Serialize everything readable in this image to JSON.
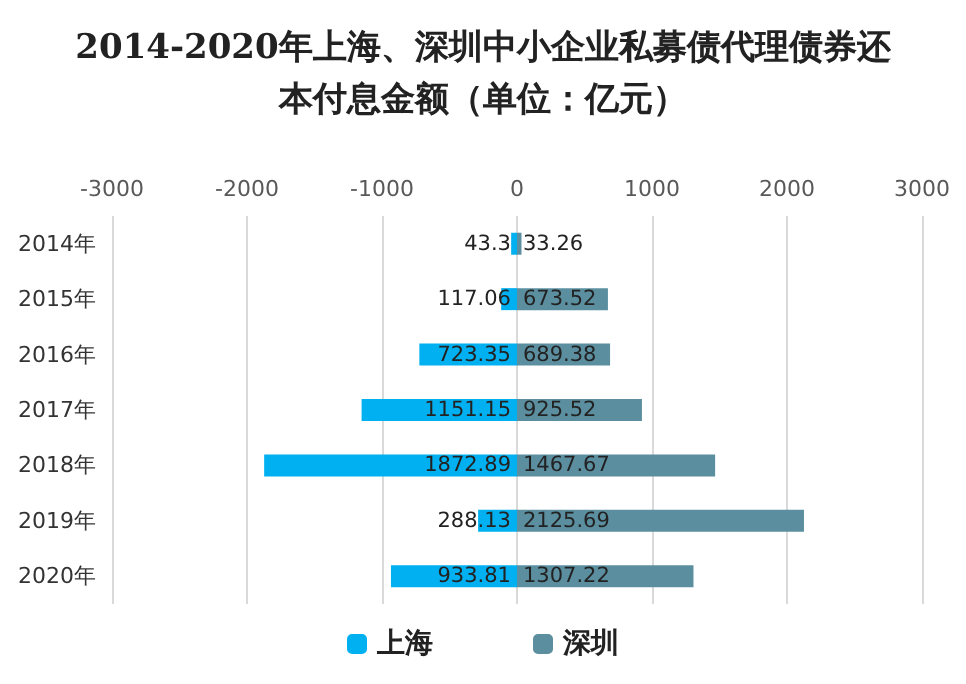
{
  "chart_data": {
    "type": "bar",
    "orientation": "horizontal",
    "title": "2014-2020年上海、深圳中小企业私募债代理债券还本付息金额（单位：亿元）",
    "categories": [
      "2014年",
      "2015年",
      "2016年",
      "2017年",
      "2018年",
      "2019年",
      "2020年"
    ],
    "series": [
      {
        "name": "上海",
        "color": "#00b0f0",
        "values": [
          43.3,
          117.06,
          723.35,
          1151.15,
          1872.89,
          288.13,
          933.81
        ],
        "base": [
          -43.3,
          -117.06,
          -723.35,
          -1151.15,
          -1872.89,
          -288.13,
          -933.81
        ]
      },
      {
        "name": "深圳",
        "color": "#5b8fa0",
        "values": [
          33.26,
          673.52,
          689.38,
          925.52,
          1467.67,
          2125.69,
          1307.22
        ]
      }
    ],
    "data_labels": true,
    "xlim": [
      -3000,
      3000
    ],
    "xticks": [
      -3000,
      -2000,
      -1000,
      0,
      1000,
      2000,
      3000
    ],
    "grid": "x",
    "legend": "bottom"
  }
}
